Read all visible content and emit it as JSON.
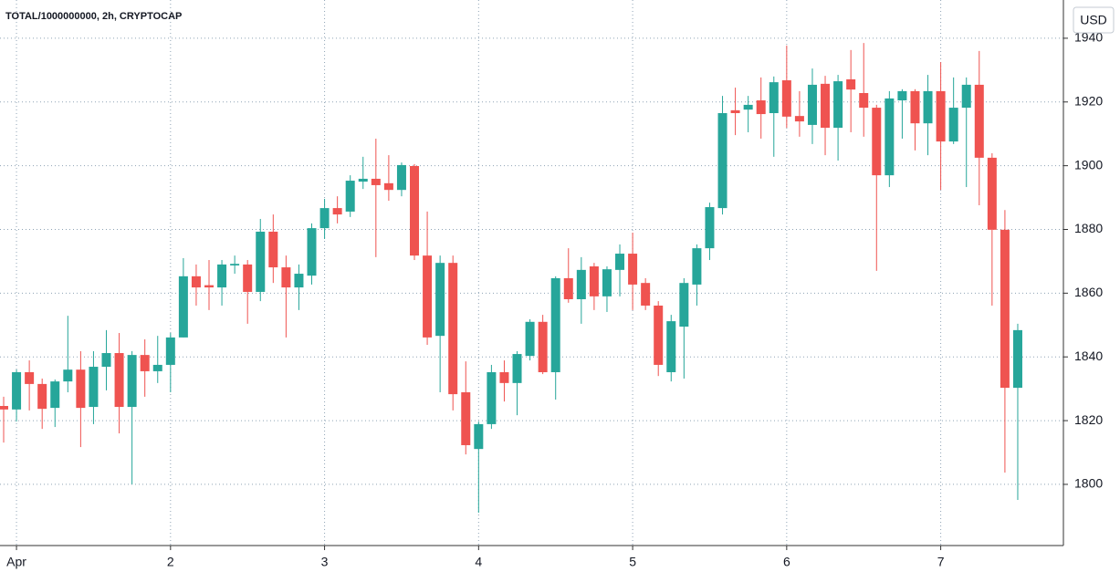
{
  "chart_data": {
    "type": "candlestick",
    "title": "TOTAL/1000000000, 2h, CRYPTOCAP",
    "currency": "USD",
    "up_color": "#26a69a",
    "down_color": "#ef5350",
    "grid": true,
    "categories": [
      null,
      "Apr",
      null,
      null,
      null,
      null,
      null,
      null,
      null,
      null,
      null,
      null,
      null,
      "2",
      null,
      null,
      null,
      null,
      null,
      null,
      null,
      null,
      null,
      null,
      null,
      "3",
      null,
      null,
      null,
      null,
      null,
      null,
      null,
      null,
      null,
      null,
      null,
      "4",
      null,
      null,
      null,
      null,
      null,
      null,
      null,
      null,
      null,
      null,
      null,
      "5",
      null,
      null,
      null,
      null,
      null,
      null,
      null,
      null,
      null,
      null,
      null,
      "6",
      null,
      null,
      null,
      null,
      null,
      null,
      null,
      null,
      null,
      null,
      null,
      "7",
      null,
      null,
      null,
      null,
      null,
      null
    ],
    "open": [
      1824.6,
      1823.5,
      1835.2,
      1831.5,
      1824.0,
      1832.3,
      1836.0,
      1824.3,
      1836.9,
      1841.2,
      1824.3,
      1840.6,
      1835.5,
      1837.5,
      1846.1,
      1865.3,
      1862.5,
      1861.8,
      1868.7,
      1869.0,
      1860.4,
      1879.3,
      1868.1,
      1861.8,
      1865.5,
      1880.4,
      1886.7,
      1885.6,
      1895.0,
      1895.9,
      1894.5,
      1892.4,
      1899.9,
      1871.8,
      1846.6,
      1869.5,
      1828.9,
      1811.1,
      1818.9,
      1835.2,
      1831.8,
      1840.3,
      1851.0,
      1835.2,
      1864.7,
      1858.1,
      1868.4,
      1859.0,
      1867.3,
      1872.4,
      1863.2,
      1856.1,
      1835.2,
      1849.5,
      1862.7,
      1874.1,
      1886.7,
      1917.4,
      1917.6,
      1920.5,
      1916.5,
      1926.8,
      1915.6,
      1912.8,
      1925.7,
      1911.9,
      1927.1,
      1922.8,
      1918.2,
      1897.0,
      1920.5,
      1923.4,
      1913.3,
      1923.4,
      1907.6,
      1918.2,
      1925.4,
      1902.5,
      1879.9,
      1830.3
    ],
    "high": [
      1827.5,
      1836.0,
      1838.9,
      1833.2,
      1832.9,
      1852.9,
      1841.8,
      1841.8,
      1848.4,
      1847.5,
      1841.8,
      1845.5,
      1846.6,
      1847.5,
      1871.0,
      1869.0,
      1870.4,
      1870.4,
      1871.8,
      1870.4,
      1883.3,
      1884.7,
      1871.8,
      1869.0,
      1881.9,
      1889.6,
      1890.4,
      1897.0,
      1902.8,
      1908.5,
      1903.3,
      1901.0,
      1900.5,
      1885.6,
      1871.8,
      1871.8,
      1838.6,
      1819.7,
      1837.5,
      1838.9,
      1841.8,
      1851.8,
      1853.2,
      1865.3,
      1874.1,
      1871.3,
      1869.5,
      1868.4,
      1875.3,
      1879.0,
      1864.7,
      1857.5,
      1853.2,
      1864.7,
      1875.3,
      1888.4,
      1921.9,
      1924.5,
      1921.9,
      1927.7,
      1928.0,
      1937.7,
      1923.4,
      1930.5,
      1928.2,
      1928.5,
      1936.3,
      1938.5,
      1919.1,
      1923.4,
      1924.0,
      1924.0,
      1928.5,
      1932.5,
      1927.7,
      1927.7,
      1936.0,
      1903.9,
      1886.1,
      1850.4
    ],
    "low": [
      1813.1,
      1819.7,
      1823.2,
      1817.4,
      1818.0,
      1828.9,
      1811.7,
      1818.9,
      1829.5,
      1816.0,
      1800.0,
      1827.5,
      1831.8,
      1828.9,
      1846.1,
      1856.1,
      1854.7,
      1856.1,
      1866.1,
      1850.4,
      1857.5,
      1863.2,
      1846.1,
      1854.7,
      1862.7,
      1877.0,
      1881.9,
      1883.9,
      1892.7,
      1871.3,
      1889.0,
      1890.4,
      1870.4,
      1843.8,
      1828.9,
      1823.2,
      1809.4,
      1791.1,
      1817.4,
      1826.0,
      1821.7,
      1838.9,
      1834.6,
      1826.6,
      1857.0,
      1850.4,
      1854.7,
      1854.1,
      1859.0,
      1854.7,
      1854.7,
      1834.0,
      1832.3,
      1833.2,
      1856.1,
      1870.4,
      1884.7,
      1909.6,
      1910.5,
      1908.5,
      1902.8,
      1911.9,
      1909.1,
      1906.8,
      1903.3,
      1901.6,
      1910.5,
      1909.1,
      1867.0,
      1893.3,
      1908.5,
      1904.8,
      1903.3,
      1892.4,
      1906.8,
      1893.3,
      1887.6,
      1856.1,
      1803.7,
      1795.1
    ],
    "close": [
      1823.5,
      1835.2,
      1831.5,
      1823.7,
      1832.3,
      1836.0,
      1824.0,
      1836.9,
      1841.2,
      1824.3,
      1840.6,
      1835.5,
      1837.5,
      1846.1,
      1865.3,
      1861.8,
      1861.8,
      1869.0,
      1869.2,
      1860.4,
      1879.3,
      1868.1,
      1861.8,
      1866.1,
      1880.4,
      1886.7,
      1884.7,
      1895.3,
      1895.9,
      1893.9,
      1892.4,
      1900.2,
      1871.8,
      1846.1,
      1869.5,
      1828.3,
      1812.3,
      1818.9,
      1835.2,
      1831.8,
      1840.9,
      1851.0,
      1835.2,
      1864.7,
      1858.1,
      1867.3,
      1859.0,
      1867.5,
      1872.4,
      1862.7,
      1856.1,
      1837.5,
      1851.2,
      1863.2,
      1874.1,
      1887.0,
      1916.5,
      1916.5,
      1919.1,
      1916.2,
      1926.2,
      1915.4,
      1913.9,
      1925.4,
      1911.9,
      1926.5,
      1923.9,
      1918.2,
      1897.0,
      1921.1,
      1923.4,
      1913.3,
      1923.4,
      1907.6,
      1918.2,
      1925.4,
      1902.5,
      1879.9,
      1830.3,
      1848.4
    ],
    "ylim": [
      1780.8,
      1952
    ],
    "yticks": [
      1800,
      1820,
      1840,
      1860,
      1880,
      1900,
      1920,
      1940
    ]
  }
}
